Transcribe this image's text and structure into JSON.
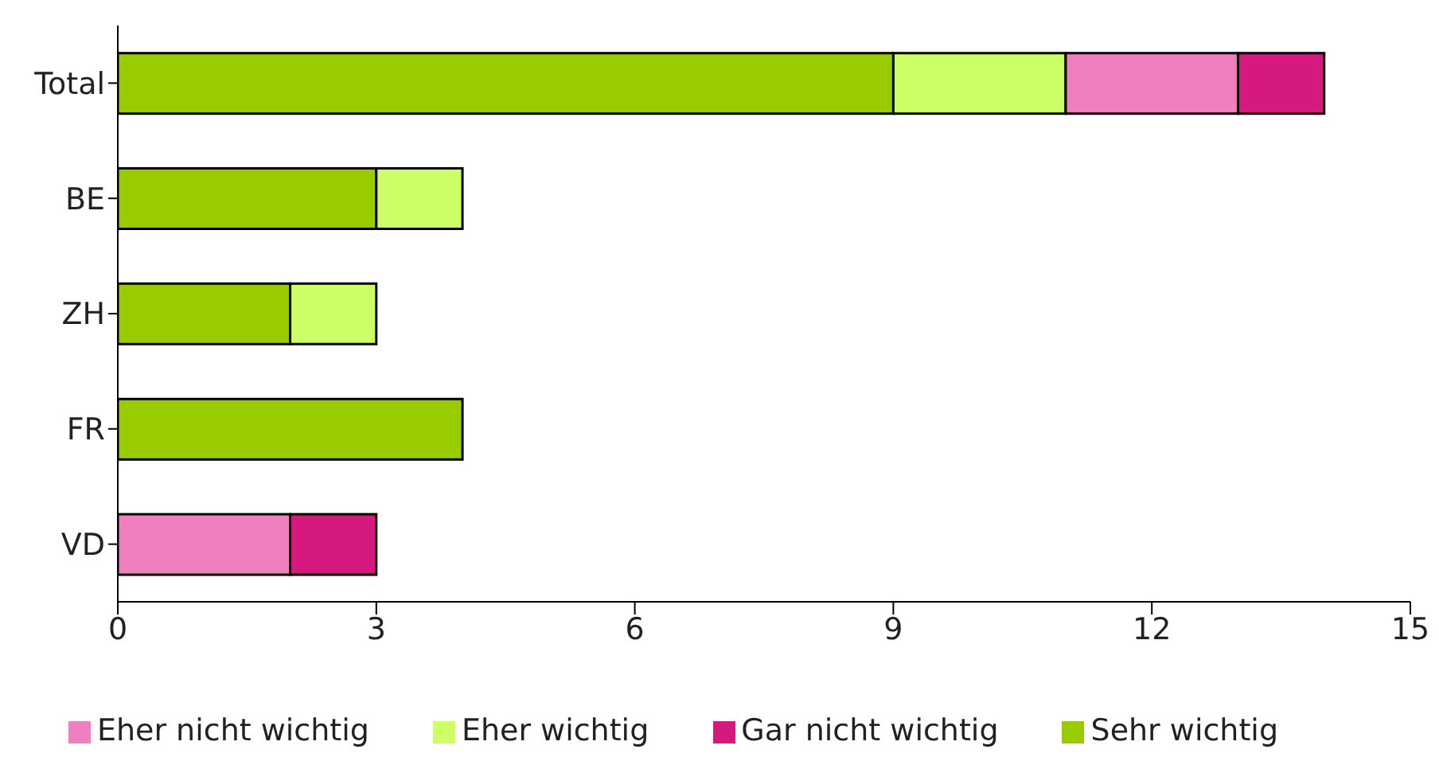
{
  "chart_data": {
    "type": "bar",
    "orientation": "horizontal",
    "stacked": true,
    "categories": [
      "Total",
      "BE",
      "ZH",
      "FR",
      "VD"
    ],
    "series": [
      {
        "name": "Sehr wichtig",
        "color": "#99cc00",
        "values": [
          9,
          3,
          2,
          4,
          0
        ]
      },
      {
        "name": "Eher wichtig",
        "color": "#ccff66",
        "values": [
          2,
          1,
          1,
          0,
          0
        ]
      },
      {
        "name": "Eher nicht wichtig",
        "color": "#f07fbf",
        "values": [
          2,
          0,
          0,
          0,
          2
        ]
      },
      {
        "name": "Gar nicht wichtig",
        "color": "#d6197f",
        "values": [
          1,
          0,
          0,
          0,
          1
        ]
      }
    ],
    "xlim": [
      0,
      15
    ],
    "xticks": [
      0,
      3,
      6,
      9,
      12,
      15
    ],
    "grid": false,
    "legend": "bottom"
  }
}
